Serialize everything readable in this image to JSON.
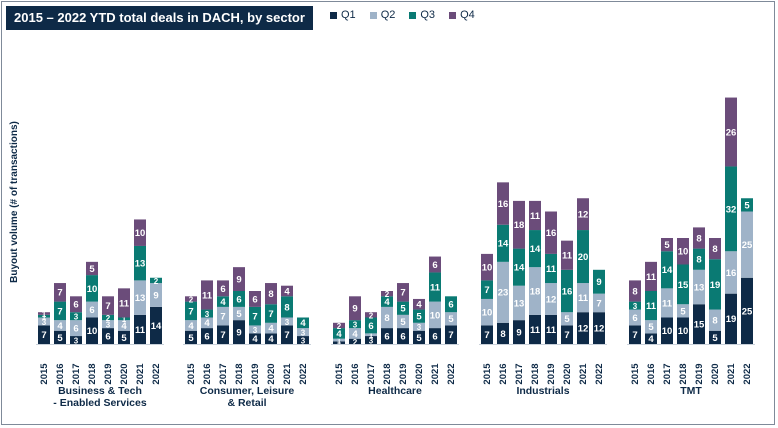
{
  "title": "2015 – 2022 YTD total deals in DACH, by sector",
  "colors": {
    "Q1": "#0e2a47",
    "Q2": "#9fb3c8",
    "Q3": "#0a7a73",
    "Q4": "#6b4c7a"
  },
  "chart_data": {
    "type": "bar",
    "stacked": true,
    "ylabel": "Buyout volume (# of transactions)",
    "legend": [
      "Q1",
      "Q2",
      "Q3",
      "Q4"
    ],
    "legend_position": "top",
    "years": [
      "2015",
      "2016",
      "2017",
      "2018",
      "2019",
      "2020",
      "2021",
      "2022"
    ],
    "groups": [
      {
        "name": "Business & Tech - Enabled Services",
        "label_lines": [
          "Business & Tech",
          "- Enabled Services"
        ],
        "data": [
          [
            7,
            3,
            1,
            1
          ],
          [
            5,
            4,
            7,
            7
          ],
          [
            3,
            6,
            3,
            6
          ],
          [
            10,
            6,
            10,
            5
          ],
          [
            6,
            3,
            2,
            7
          ],
          [
            5,
            4,
            1,
            11
          ],
          [
            11,
            13,
            13,
            10
          ],
          [
            14,
            9,
            2,
            0
          ]
        ]
      },
      {
        "name": "Consumer, Leisure & Retail",
        "label_lines": [
          "Consumer, Leisure",
          "& Retail"
        ],
        "data": [
          [
            5,
            4,
            7,
            2
          ],
          [
            6,
            4,
            3,
            11
          ],
          [
            7,
            7,
            4,
            6
          ],
          [
            9,
            5,
            6,
            9
          ],
          [
            4,
            3,
            7,
            6
          ],
          [
            4,
            4,
            7,
            8
          ],
          [
            7,
            3,
            8,
            4
          ],
          [
            3,
            3,
            4,
            0
          ]
        ]
      },
      {
        "name": "Healthcare",
        "label_lines": [
          "Healthcare"
        ],
        "data": [
          [
            1,
            1,
            4,
            2
          ],
          [
            2,
            4,
            3,
            9
          ],
          [
            3,
            1,
            6,
            2
          ],
          [
            6,
            8,
            4,
            2
          ],
          [
            6,
            5,
            5,
            7
          ],
          [
            5,
            3,
            5,
            4
          ],
          [
            6,
            10,
            11,
            6
          ],
          [
            7,
            5,
            6,
            0
          ]
        ]
      },
      {
        "name": "Industrials",
        "label_lines": [
          "Industrials"
        ],
        "data": [
          [
            7,
            10,
            7,
            10
          ],
          [
            8,
            23,
            14,
            16
          ],
          [
            9,
            13,
            14,
            18
          ],
          [
            11,
            18,
            14,
            11
          ],
          [
            11,
            12,
            11,
            16
          ],
          [
            7,
            5,
            16,
            11
          ],
          [
            12,
            11,
            20,
            12
          ],
          [
            12,
            7,
            9,
            0
          ]
        ]
      },
      {
        "name": "TMT",
        "label_lines": [
          "TMT"
        ],
        "data": [
          [
            7,
            6,
            3,
            8
          ],
          [
            4,
            5,
            11,
            11
          ],
          [
            10,
            11,
            14,
            5
          ],
          [
            10,
            5,
            15,
            10
          ],
          [
            15,
            13,
            8,
            8
          ],
          [
            5,
            8,
            19,
            8
          ],
          [
            19,
            16,
            32,
            26
          ],
          [
            25,
            25,
            5,
            0
          ]
        ]
      }
    ]
  }
}
